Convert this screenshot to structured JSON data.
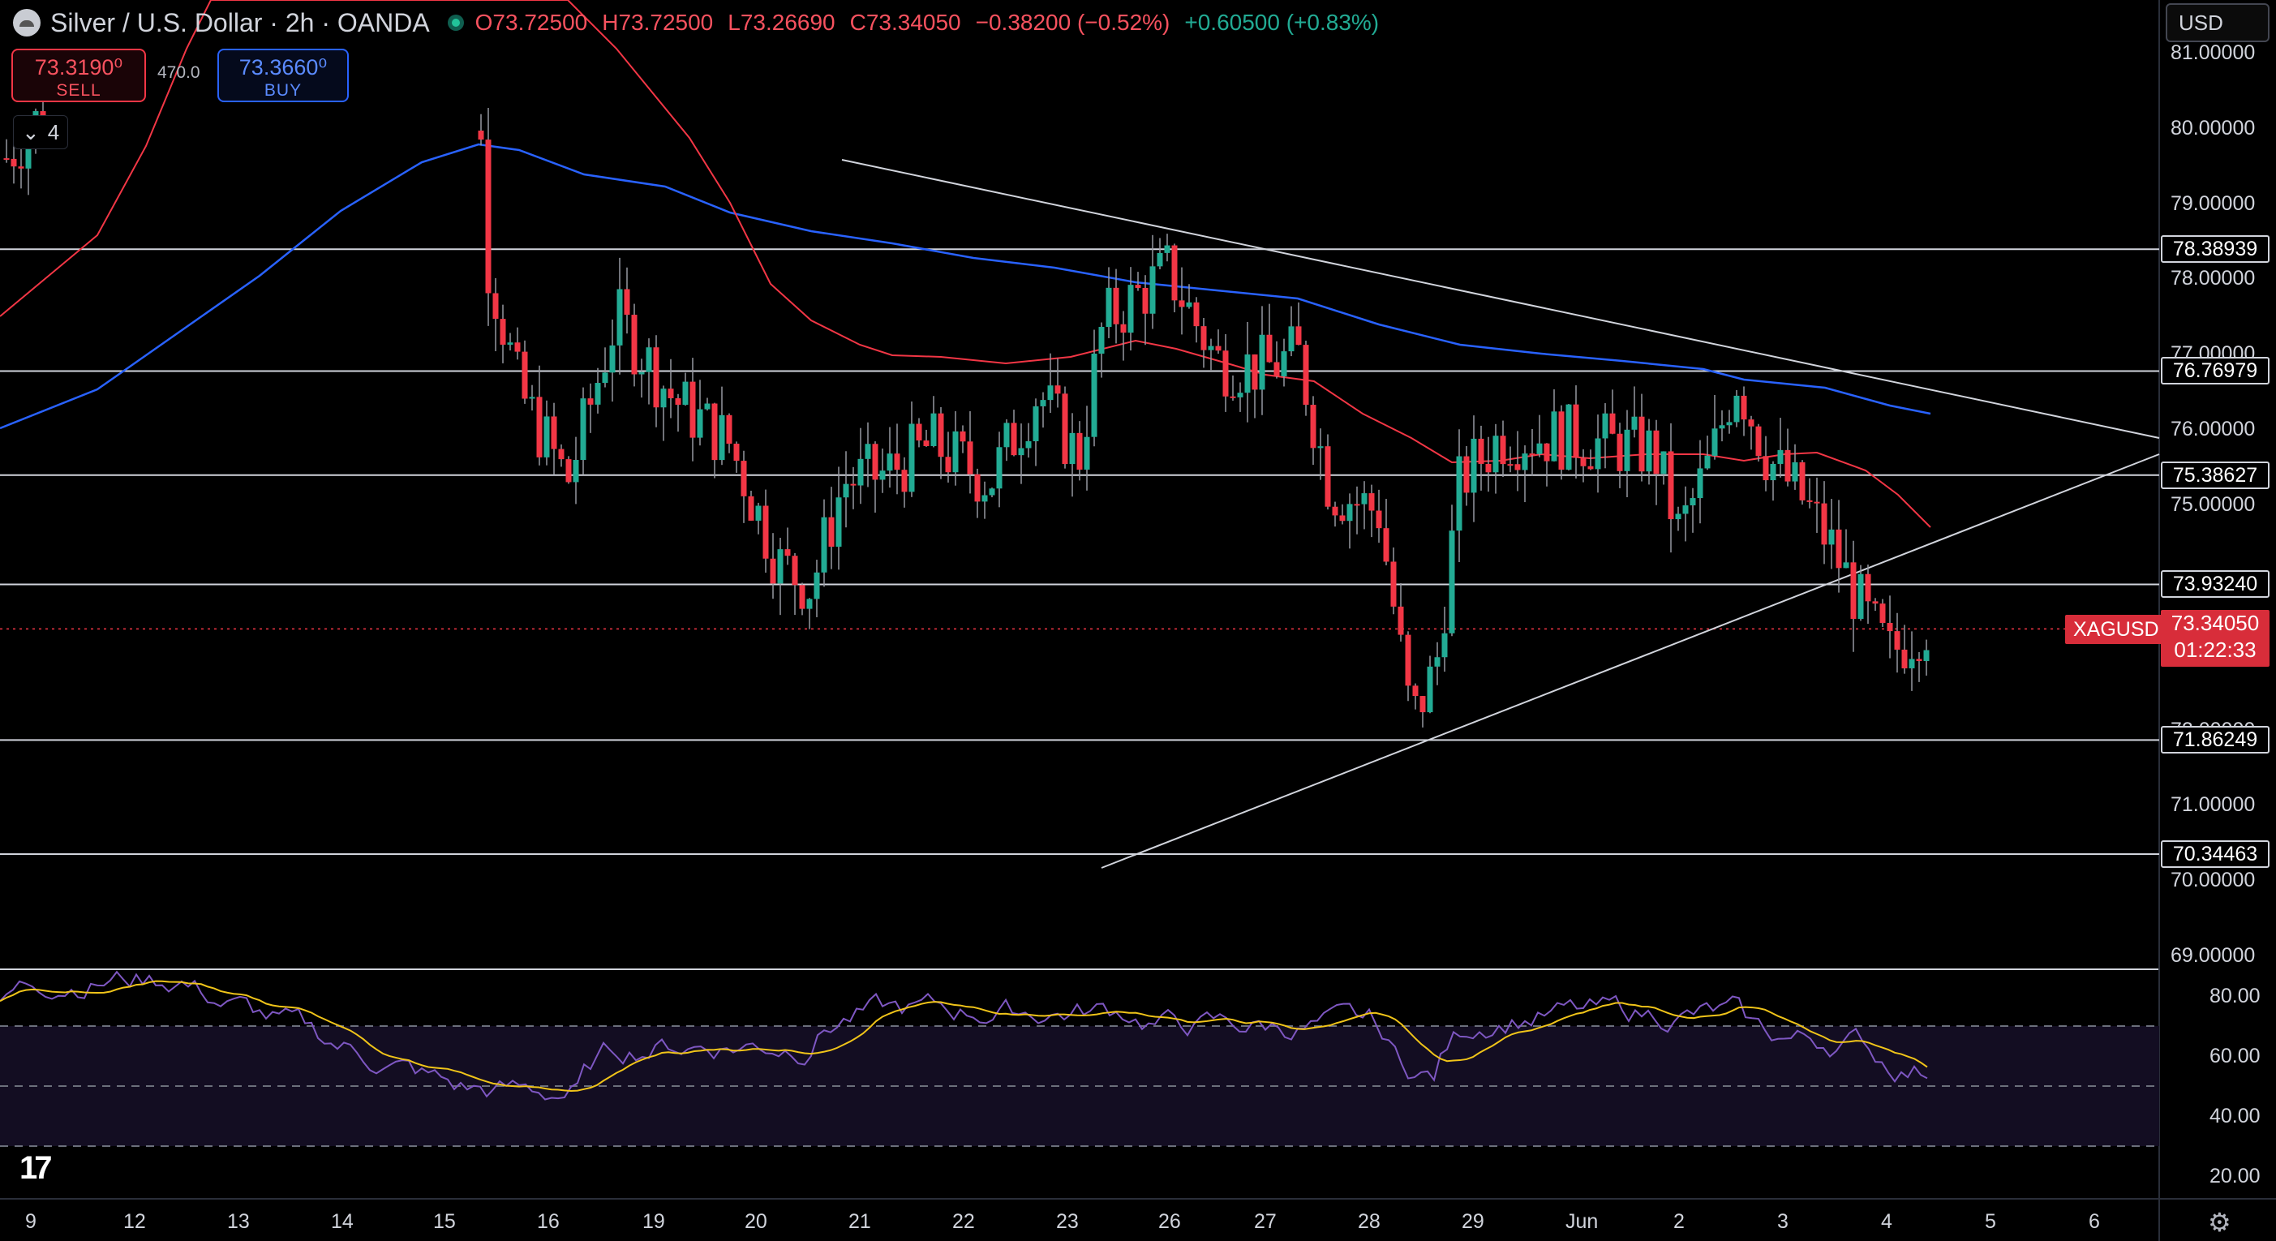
{
  "header": {
    "symbol_title": "Silver / U.S. Dollar · 2h · OANDA",
    "open": "O73.72500",
    "high": "H73.72500",
    "low": "L73.26690",
    "close": "C73.34050",
    "change": "−0.38200 (−0.52%)",
    "change_ext": "+0.60500 (+0.83%)"
  },
  "trade": {
    "sell_price": "73.3190⁰",
    "sell_label": "SELL",
    "spread": "470.0",
    "buy_price": "73.3660⁰",
    "buy_label": "BUY",
    "collapse_count": "4"
  },
  "currency_select": "USD",
  "price_axis": {
    "labels": [
      "81.00000",
      "80.00000",
      "79.00000",
      "78.00000",
      "77.00000",
      "76.00000",
      "75.00000",
      "72.00000",
      "71.00000",
      "70.00000",
      "69.00000"
    ],
    "level_tags": [
      "78.38939",
      "76.76979",
      "75.38627",
      "73.93240",
      "71.86249",
      "70.34463"
    ],
    "current_symbol": "XAGUSD",
    "current_price": "73.34050",
    "countdown": "01:22:33"
  },
  "rsi_axis": [
    "80.00",
    "60.00",
    "40.00",
    "20.00"
  ],
  "time_axis": [
    "9",
    "12",
    "13",
    "14",
    "15",
    "16",
    "19",
    "20",
    "21",
    "22",
    "23",
    "26",
    "27",
    "28",
    "29",
    "Jun",
    "2",
    "3",
    "4",
    "5",
    "6"
  ],
  "colors": {
    "up": "#22ab94",
    "down": "#f23645",
    "ma_fast": "#f23645",
    "ma_slow": "#2962ff",
    "rsi": "#7e57c2",
    "rsi_ma": "#f0c419",
    "level": "#d1d4dc"
  },
  "icons": {
    "logo": "tradingview-logo",
    "settings": "gear-icon",
    "collapse": "chevron-down-icon"
  }
}
